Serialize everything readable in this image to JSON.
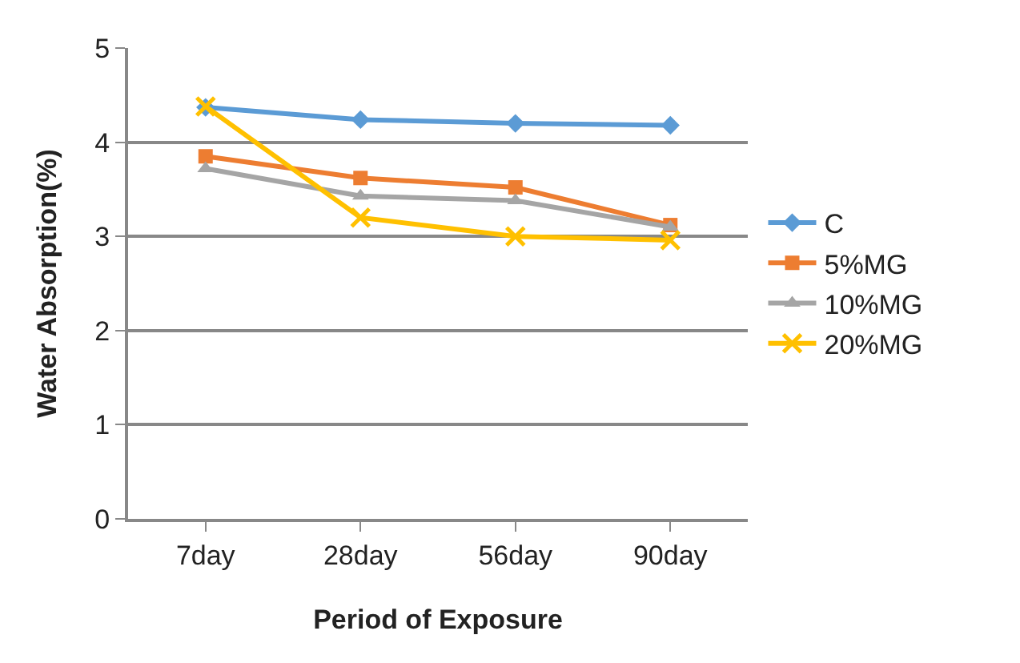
{
  "chart_data": {
    "type": "line",
    "xlabel": "Period of Exposure",
    "ylabel": "Water Absorption(%)",
    "categories": [
      "7day",
      "28day",
      "56day",
      "90day"
    ],
    "series": [
      {
        "name": "C",
        "color": "#5b9bd5",
        "marker": "diamond",
        "values": [
          4.37,
          4.24,
          4.2,
          4.18
        ]
      },
      {
        "name": "5%MG",
        "color": "#ed7d31",
        "marker": "square",
        "values": [
          3.85,
          3.62,
          3.52,
          3.12
        ]
      },
      {
        "name": "10%MG",
        "color": "#a5a5a5",
        "marker": "triangle",
        "values": [
          3.72,
          3.43,
          3.38,
          3.1
        ]
      },
      {
        "name": "20%MG",
        "color": "#ffc000",
        "marker": "cross",
        "values": [
          4.38,
          3.2,
          3.0,
          2.96
        ]
      }
    ],
    "ylim": [
      0,
      5
    ],
    "yticks": [
      0,
      1,
      2,
      3,
      4,
      5
    ],
    "grid": "y",
    "legend": "right"
  }
}
